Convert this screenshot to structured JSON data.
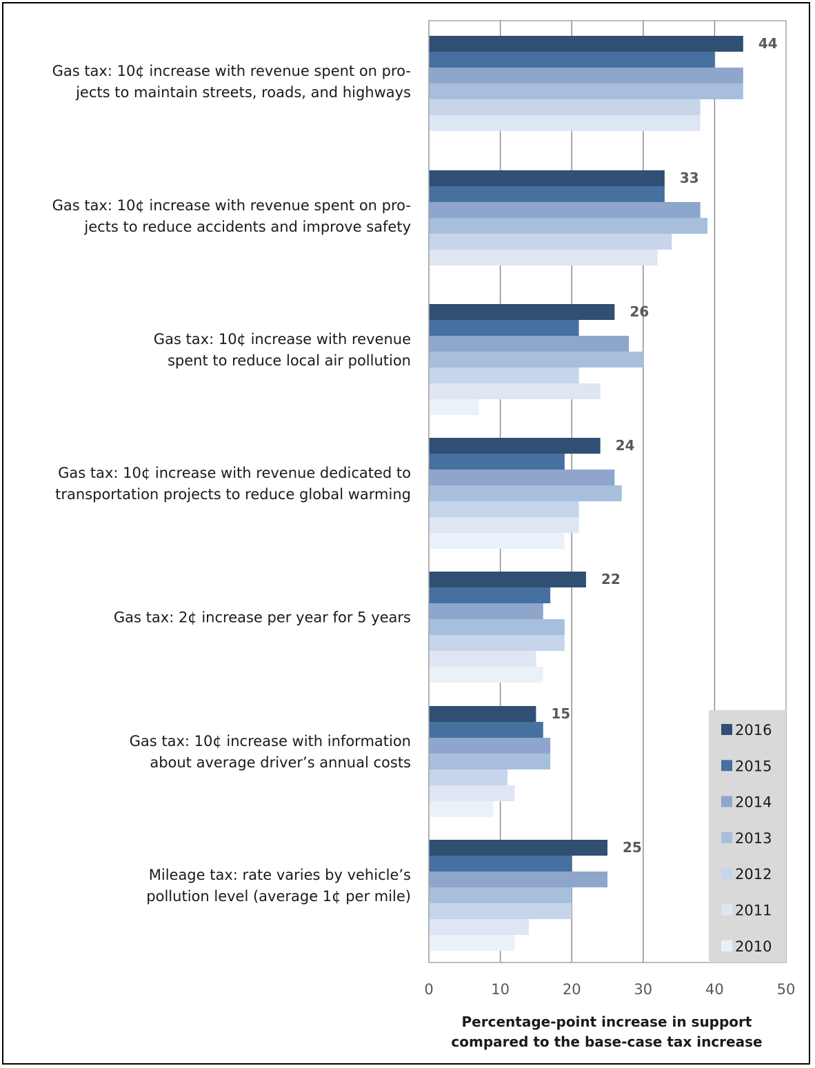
{
  "chart_data": {
    "type": "bar",
    "orientation": "horizontal",
    "categories": [
      [
        "Gas tax: 10¢ increase with revenue spent on pro-",
        "jects to maintain streets, roads, and highways"
      ],
      [
        "Gas tax: 10¢ increase with revenue spent on pro-",
        "jects to reduce accidents and improve safety"
      ],
      [
        "Gas tax: 10¢ increase with revenue",
        "spent to reduce local air pollution"
      ],
      [
        "Gas tax: 10¢ increase with revenue dedicated to",
        "transportation projects to reduce global warming"
      ],
      [
        "Gas tax: 2¢ increase per year for 5 years"
      ],
      [
        "Gas tax: 10¢ increase with information",
        "about average driver’s annual costs"
      ],
      [
        "Mileage tax: rate varies by vehicle’s",
        "pollution level (average 1¢ per mile)"
      ]
    ],
    "series": [
      {
        "name": "2016",
        "color": "#2f4f73",
        "values": [
          44,
          33,
          26,
          24,
          22,
          15,
          25
        ]
      },
      {
        "name": "2015",
        "color": "#46709f",
        "values": [
          40,
          33,
          21,
          19,
          17,
          16,
          20
        ]
      },
      {
        "name": "2014",
        "color": "#8ea6cc",
        "values": [
          44,
          38,
          28,
          26,
          16,
          17,
          25
        ]
      },
      {
        "name": "2013",
        "color": "#a7bfdc",
        "values": [
          44,
          39,
          30,
          27,
          19,
          17,
          20
        ]
      },
      {
        "name": "2012",
        "color": "#c6d5ea",
        "values": [
          38,
          34,
          21,
          21,
          19,
          11,
          20
        ]
      },
      {
        "name": "2011",
        "color": "#dde6f2",
        "values": [
          38,
          32,
          24,
          21,
          15,
          12,
          14
        ]
      },
      {
        "name": "2010",
        "color": "#ebf1f8",
        "values": [
          null,
          null,
          7,
          19,
          16,
          9,
          12
        ]
      }
    ],
    "data_labels": [
      "44",
      "33",
      "26",
      "24",
      "22",
      "15",
      "25"
    ],
    "xlim": [
      0,
      50
    ],
    "xticks": [
      "0",
      "10",
      "20",
      "30",
      "40",
      "50"
    ],
    "xlabel": [
      "Percentage-point increase in support",
      "compared to the base-case tax increase"
    ],
    "grid": "vertical",
    "legend_position": "bottom-right",
    "legend_background": "#d9d9d9"
  }
}
